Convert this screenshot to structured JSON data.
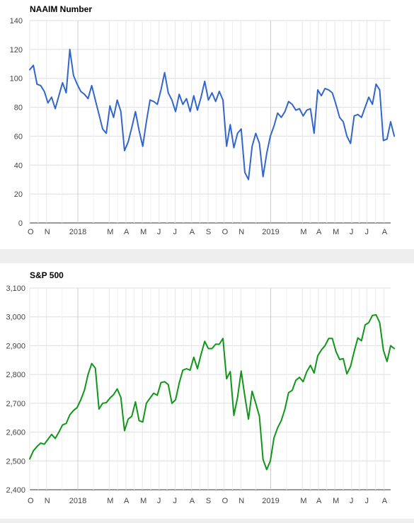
{
  "chart_data": [
    {
      "type": "line",
      "title": "NAAIM Number",
      "color": "#3366cc",
      "ylim": [
        0,
        140
      ],
      "yticks": [
        0,
        20,
        40,
        60,
        80,
        100,
        120,
        140
      ],
      "ytick_labels": [
        "0",
        "20",
        "40",
        "60",
        "80",
        "100",
        "120",
        "140"
      ],
      "xlim": [
        0,
        99
      ],
      "xticks": [
        {
          "label": "O",
          "pos": 0
        },
        {
          "label": "N",
          "pos": 4.6
        },
        {
          "label": "2018",
          "pos": 13.2
        },
        {
          "label": "M",
          "pos": 21.8
        },
        {
          "label": "A",
          "pos": 26.4
        },
        {
          "label": "M",
          "pos": 30.9
        },
        {
          "label": "J",
          "pos": 35.5
        },
        {
          "label": "J",
          "pos": 39.9
        },
        {
          "label": "A",
          "pos": 44.4
        },
        {
          "label": "S",
          "pos": 48.9
        },
        {
          "label": "O",
          "pos": 53.3
        },
        {
          "label": "N",
          "pos": 57.9
        },
        {
          "label": "2019",
          "pos": 66.1
        },
        {
          "label": "M",
          "pos": 74.8
        },
        {
          "label": "A",
          "pos": 79.2
        },
        {
          "label": "M",
          "pos": 83.7
        },
        {
          "label": "J",
          "pos": 88.3
        },
        {
          "label": "J",
          "pos": 92.5
        },
        {
          "label": "A",
          "pos": 97.2
        }
      ],
      "grid": true,
      "series": [
        {
          "values": [
            106,
            109,
            96,
            95,
            91,
            83,
            87,
            79,
            88,
            97,
            90,
            120,
            102,
            96,
            91,
            89,
            86,
            95,
            85,
            75,
            65,
            62,
            81,
            73,
            85,
            77,
            50,
            56,
            66,
            77,
            64,
            53,
            70,
            85,
            84,
            82,
            92,
            104,
            90,
            85,
            77,
            89,
            82,
            86,
            77,
            88,
            78,
            87,
            98,
            85,
            90,
            84,
            91,
            85,
            53,
            68,
            52,
            62,
            65,
            35,
            30,
            53,
            62,
            55,
            32,
            48,
            60,
            67,
            76,
            73,
            77,
            84,
            82,
            78,
            79,
            74,
            78,
            79,
            62,
            92,
            88,
            93,
            92,
            90,
            82,
            73,
            70,
            60,
            55,
            74,
            75,
            73,
            80,
            87,
            82,
            96,
            92,
            57,
            58,
            70,
            60
          ]
        }
      ]
    },
    {
      "type": "line",
      "title": "S&P 500",
      "color": "#109618",
      "ylim": [
        2400,
        3100
      ],
      "yticks": [
        2400,
        2500,
        2600,
        2700,
        2800,
        2900,
        3000,
        3100
      ],
      "ytick_labels": [
        "2,400",
        "2,500",
        "2,600",
        "2,700",
        "2,800",
        "2,900",
        "3,000",
        "3,100"
      ],
      "xlim": [
        0,
        99
      ],
      "xticks": [
        {
          "label": "O",
          "pos": 0
        },
        {
          "label": "N",
          "pos": 4.6
        },
        {
          "label": "2018",
          "pos": 13.2
        },
        {
          "label": "M",
          "pos": 21.8
        },
        {
          "label": "A",
          "pos": 26.4
        },
        {
          "label": "M",
          "pos": 30.9
        },
        {
          "label": "J",
          "pos": 35.5
        },
        {
          "label": "J",
          "pos": 39.9
        },
        {
          "label": "A",
          "pos": 44.4
        },
        {
          "label": "S",
          "pos": 48.9
        },
        {
          "label": "O",
          "pos": 53.3
        },
        {
          "label": "N",
          "pos": 57.9
        },
        {
          "label": "2019",
          "pos": 66.1
        },
        {
          "label": "M",
          "pos": 74.8
        },
        {
          "label": "A",
          "pos": 79.2
        },
        {
          "label": "M",
          "pos": 83.7
        },
        {
          "label": "J",
          "pos": 88.3
        },
        {
          "label": "J",
          "pos": 92.5
        },
        {
          "label": "A",
          "pos": 97.2
        }
      ],
      "grid": true,
      "series": [
        {
          "values": [
            2507,
            2535,
            2550,
            2562,
            2558,
            2575,
            2592,
            2578,
            2600,
            2625,
            2630,
            2660,
            2675,
            2685,
            2712,
            2745,
            2800,
            2838,
            2822,
            2680,
            2700,
            2702,
            2718,
            2730,
            2750,
            2720,
            2605,
            2645,
            2655,
            2705,
            2640,
            2635,
            2700,
            2718,
            2735,
            2728,
            2772,
            2775,
            2765,
            2700,
            2712,
            2770,
            2815,
            2820,
            2815,
            2860,
            2820,
            2870,
            2915,
            2890,
            2890,
            2905,
            2905,
            2925,
            2785,
            2810,
            2658,
            2720,
            2812,
            2725,
            2645,
            2742,
            2700,
            2655,
            2505,
            2470,
            2500,
            2580,
            2615,
            2640,
            2680,
            2737,
            2745,
            2780,
            2790,
            2775,
            2810,
            2832,
            2805,
            2865,
            2885,
            2900,
            2925,
            2925,
            2880,
            2852,
            2855,
            2802,
            2828,
            2880,
            2927,
            2917,
            2972,
            2980,
            3005,
            3007,
            2980,
            2885,
            2845,
            2900,
            2890
          ]
        }
      ]
    }
  ]
}
